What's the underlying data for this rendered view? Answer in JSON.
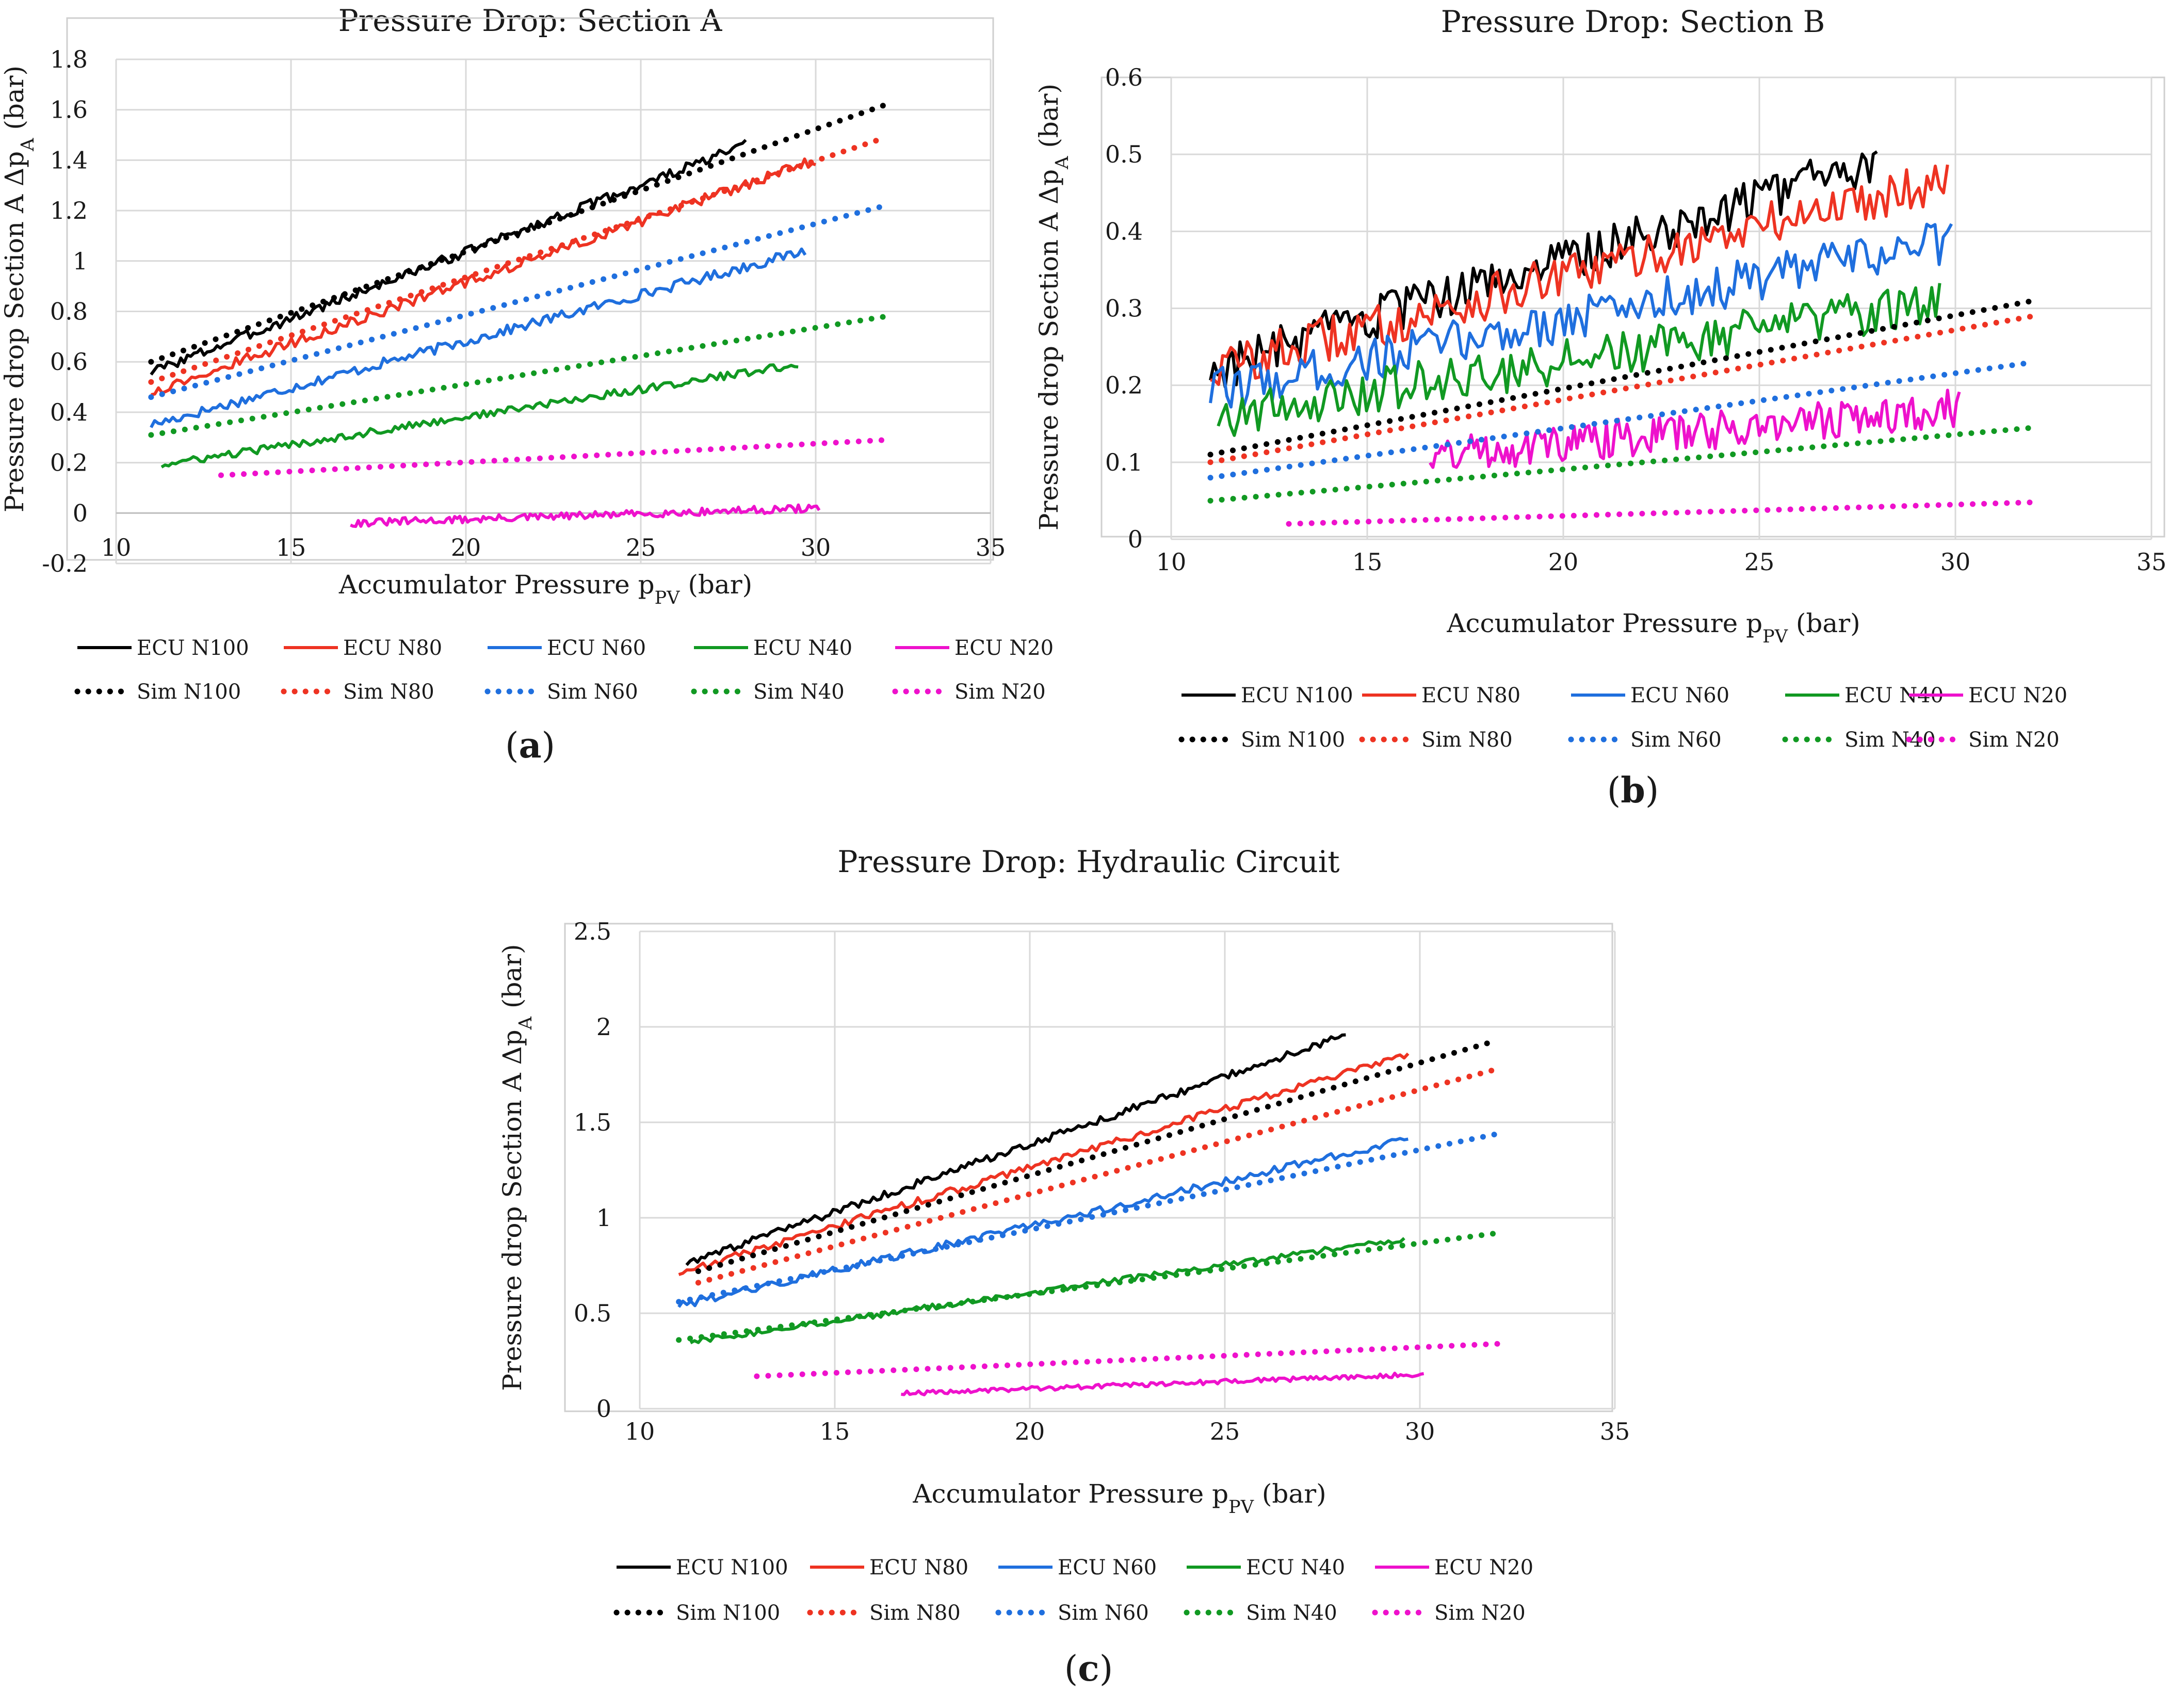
{
  "chart_data": [
    {
      "panel": "(a)",
      "type": "line",
      "title": "Pressure Drop: Section A",
      "xlabel": "Accumulator Pressure p_PV (bar)",
      "ylabel": "Pressure drop Section A Δp_A (bar)",
      "xlim": [
        10,
        35
      ],
      "ylim": [
        -0.2,
        1.8
      ],
      "xticks": [
        10,
        15,
        20,
        25,
        30,
        35
      ],
      "yticks": [
        -0.2,
        0,
        0.2,
        0.4,
        0.6,
        0.8,
        1,
        1.2,
        1.4,
        1.6,
        1.8
      ],
      "legend": "bottom",
      "series": [
        {
          "name": "ECU N100",
          "color": "#000000",
          "style": "solid",
          "x": [
            11,
            28
          ],
          "y": [
            0.56,
            1.46
          ],
          "noise": 0.02
        },
        {
          "name": "ECU N80",
          "color": "#ee3322",
          "style": "solid",
          "x": [
            11,
            30
          ],
          "y": [
            0.48,
            1.4
          ],
          "noise": 0.02
        },
        {
          "name": "ECU N60",
          "color": "#1f6fde",
          "style": "solid",
          "x": [
            11,
            29.7
          ],
          "y": [
            0.35,
            1.04
          ],
          "noise": 0.02
        },
        {
          "name": "ECU N40",
          "color": "#119922",
          "style": "solid",
          "x": [
            11.3,
            29.5
          ],
          "y": [
            0.19,
            0.59
          ],
          "noise": 0.015
        },
        {
          "name": "ECU N20",
          "color": "#ee11cc",
          "style": "solid",
          "x": [
            16.7,
            30.1
          ],
          "y": [
            -0.04,
            0.02
          ],
          "noise": 0.015
        },
        {
          "name": "Sim N100",
          "color": "#000000",
          "style": "dotted",
          "x": [
            11,
            32
          ],
          "y": [
            0.6,
            1.62
          ]
        },
        {
          "name": "Sim N80",
          "color": "#ee3322",
          "style": "dotted",
          "x": [
            11,
            32
          ],
          "y": [
            0.52,
            1.49
          ]
        },
        {
          "name": "Sim N60",
          "color": "#1f6fde",
          "style": "dotted",
          "x": [
            11,
            32
          ],
          "y": [
            0.46,
            1.22
          ]
        },
        {
          "name": "Sim N40",
          "color": "#119922",
          "style": "dotted",
          "x": [
            11,
            32
          ],
          "y": [
            0.31,
            0.78
          ]
        },
        {
          "name": "Sim N20",
          "color": "#ee11cc",
          "style": "dotted",
          "x": [
            13,
            32
          ],
          "y": [
            0.15,
            0.29
          ]
        }
      ]
    },
    {
      "panel": "(b)",
      "type": "line",
      "title": "Pressure Drop: Section B",
      "xlabel": "Accumulator Pressure p_PV (bar)",
      "ylabel": "Pressure drop Section A Δp_A (bar)",
      "xlim": [
        10,
        35
      ],
      "ylim": [
        0,
        0.6
      ],
      "xticks": [
        10,
        15,
        20,
        25,
        30,
        35
      ],
      "yticks": [
        0,
        0.1,
        0.2,
        0.3,
        0.4,
        0.5,
        0.6
      ],
      "legend": "bottom",
      "series": [
        {
          "name": "ECU N100",
          "color": "#000000",
          "style": "solid",
          "x": [
            11,
            28
          ],
          "y": [
            0.22,
            0.49
          ],
          "noise": 0.03
        },
        {
          "name": "ECU N80",
          "color": "#ee3322",
          "style": "solid",
          "x": [
            11,
            29.8
          ],
          "y": [
            0.22,
            0.47
          ],
          "noise": 0.03
        },
        {
          "name": "ECU N60",
          "color": "#1f6fde",
          "style": "solid",
          "x": [
            11,
            29.9
          ],
          "y": [
            0.19,
            0.39
          ],
          "noise": 0.03
        },
        {
          "name": "ECU N40",
          "color": "#119922",
          "style": "solid",
          "x": [
            11.2,
            29.6
          ],
          "y": [
            0.16,
            0.31
          ],
          "noise": 0.03
        },
        {
          "name": "ECU N20",
          "color": "#ee11cc",
          "style": "solid",
          "x": [
            16.6,
            30.1
          ],
          "y": [
            0.11,
            0.17
          ],
          "noise": 0.025
        },
        {
          "name": "Sim N100",
          "color": "#000000",
          "style": "dotted",
          "x": [
            11,
            32
          ],
          "y": [
            0.11,
            0.31
          ]
        },
        {
          "name": "Sim N80",
          "color": "#ee3322",
          "style": "dotted",
          "x": [
            11,
            32
          ],
          "y": [
            0.1,
            0.29
          ]
        },
        {
          "name": "Sim N60",
          "color": "#1f6fde",
          "style": "dotted",
          "x": [
            11,
            32
          ],
          "y": [
            0.08,
            0.23
          ]
        },
        {
          "name": "Sim N40",
          "color": "#119922",
          "style": "dotted",
          "x": [
            11,
            32
          ],
          "y": [
            0.05,
            0.145
          ]
        },
        {
          "name": "Sim N20",
          "color": "#ee11cc",
          "style": "dotted",
          "x": [
            13,
            32
          ],
          "y": [
            0.02,
            0.048
          ]
        }
      ]
    },
    {
      "panel": "(c)",
      "type": "line",
      "title": "Pressure Drop: Hydraulic Circuit",
      "xlabel": "Accumulator Pressure p_PV (bar)",
      "ylabel": "Pressure drop Section A Δp_A (bar)",
      "xlim": [
        10,
        35
      ],
      "ylim": [
        0,
        2.5
      ],
      "xticks": [
        10,
        15,
        20,
        25,
        30,
        35
      ],
      "yticks": [
        0,
        0.5,
        1,
        1.5,
        2,
        2.5
      ],
      "legend": "bottom",
      "series": [
        {
          "name": "ECU N100",
          "color": "#000000",
          "style": "solid",
          "x": [
            11.2,
            28.1
          ],
          "y": [
            0.76,
            1.96
          ],
          "noise": 0.02
        },
        {
          "name": "ECU N80",
          "color": "#ee3322",
          "style": "solid",
          "x": [
            11,
            29.7
          ],
          "y": [
            0.71,
            1.86
          ],
          "noise": 0.02
        },
        {
          "name": "ECU N60",
          "color": "#1f6fde",
          "style": "solid",
          "x": [
            11,
            29.7
          ],
          "y": [
            0.54,
            1.41
          ],
          "noise": 0.02
        },
        {
          "name": "ECU N40",
          "color": "#119922",
          "style": "solid",
          "x": [
            11.3,
            29.6
          ],
          "y": [
            0.35,
            0.89
          ],
          "noise": 0.015
        },
        {
          "name": "ECU N20",
          "color": "#ee11cc",
          "style": "solid",
          "x": [
            16.7,
            30.1
          ],
          "y": [
            0.08,
            0.18
          ],
          "noise": 0.012
        },
        {
          "name": "Sim N100",
          "color": "#000000",
          "style": "dotted",
          "x": [
            11.5,
            32
          ],
          "y": [
            0.72,
            1.93
          ]
        },
        {
          "name": "Sim N80",
          "color": "#ee3322",
          "style": "dotted",
          "x": [
            11.5,
            32
          ],
          "y": [
            0.66,
            1.78
          ]
        },
        {
          "name": "Sim N60",
          "color": "#1f6fde",
          "style": "dotted",
          "x": [
            11,
            32
          ],
          "y": [
            0.56,
            1.44
          ]
        },
        {
          "name": "Sim N40",
          "color": "#119922",
          "style": "dotted",
          "x": [
            11,
            32
          ],
          "y": [
            0.36,
            0.92
          ]
        },
        {
          "name": "Sim N20",
          "color": "#ee11cc",
          "style": "dotted",
          "x": [
            13,
            32
          ],
          "y": [
            0.17,
            0.34
          ]
        }
      ]
    }
  ]
}
